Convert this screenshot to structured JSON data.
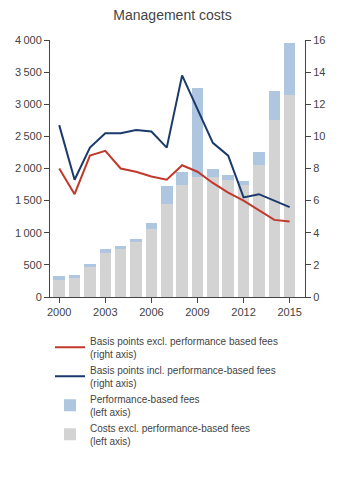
{
  "chart_data": {
    "type": "bar",
    "title": "Management costs",
    "x": [
      2000,
      2001,
      2002,
      2003,
      2004,
      2005,
      2006,
      2007,
      2008,
      2009,
      2010,
      2011,
      2012,
      2013,
      2014,
      2015
    ],
    "stacked": true,
    "series": [
      {
        "name": "Costs excl. performance-based fees\n(left axis)",
        "type": "bar",
        "color": "#d3d3d3",
        "values": [
          270,
          310,
          480,
          680,
          750,
          850,
          1060,
          1450,
          1750,
          1870,
          1870,
          1820,
          1750,
          2050,
          2750,
          3150
        ]
      },
      {
        "name": "Performance-based fees\n(left axis)",
        "type": "bar",
        "color": "#aec6e0",
        "values": [
          50,
          30,
          30,
          60,
          50,
          50,
          90,
          280,
          200,
          1380,
          120,
          80,
          60,
          200,
          450,
          800
        ]
      },
      {
        "name": "Basis points incl. performance-based fees\n(right axis)",
        "type": "line",
        "color": "#1a3a6b",
        "axis": "y2",
        "values": [
          10.7,
          7.3,
          9.3,
          10.2,
          10.2,
          10.4,
          10.3,
          9.3,
          13.8,
          11.7,
          9.6,
          8.8,
          6.2,
          6.4,
          6.0,
          5.6
        ]
      },
      {
        "name": "Basis points excl. performance based fees\n(right axis)",
        "type": "line",
        "color": "#c0392b",
        "axis": "y2",
        "values": [
          8.0,
          6.4,
          8.8,
          9.1,
          8.0,
          7.8,
          7.5,
          7.3,
          8.2,
          7.8,
          7.1,
          6.5,
          6.0,
          5.4,
          4.8,
          4.7
        ]
      }
    ],
    "xlim": [
      1999.4,
      2016.0
    ],
    "xticks": [
      2000,
      2003,
      2006,
      2009,
      2012,
      2015
    ],
    "ylim": [
      0,
      4000
    ],
    "yticks": [
      0,
      500,
      {
        "value": 1000,
        "label": "1 000"
      },
      {
        "value": 1500,
        "label": "1 500"
      },
      {
        "value": 2000,
        "label": "2 000"
      },
      {
        "value": 2500,
        "label": "2 500"
      },
      {
        "value": 3000,
        "label": "3 000"
      },
      {
        "value": 3500,
        "label": "3 500"
      },
      {
        "value": 4000,
        "label": "4 000"
      }
    ],
    "y2lim": [
      0,
      16
    ],
    "y2ticks": [
      0,
      2,
      4,
      6,
      8,
      10,
      12,
      14,
      16
    ],
    "grid": false,
    "legend": "bottom"
  }
}
